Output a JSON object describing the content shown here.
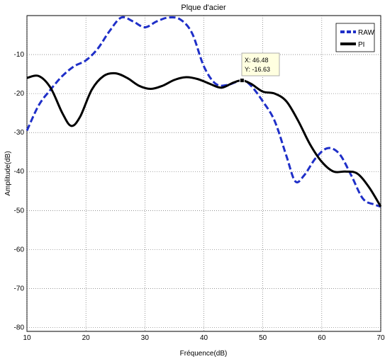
{
  "chart_data": {
    "type": "line",
    "title": "Plque d'acier",
    "xlabel": "Fréquence(dB)",
    "ylabel": "Amplitude(dB)",
    "xlim": [
      10,
      70
    ],
    "ylim": [
      -81,
      0
    ],
    "xticks": [
      "10",
      "20",
      "30",
      "40",
      "50",
      "60",
      "70"
    ],
    "yticks": [
      "-10",
      "-20",
      "-30",
      "-40",
      "-50",
      "-60",
      "-70",
      "-80"
    ],
    "grid": true,
    "legend_position": "top-right",
    "series": [
      {
        "name": "RAW",
        "color": "#1f2fc8",
        "dash": true,
        "x": [
          10,
          12,
          14,
          16,
          18,
          20,
          22,
          24,
          26,
          28,
          30,
          32,
          34,
          36,
          38,
          40,
          42,
          44,
          46.48,
          48,
          50,
          52,
          54,
          55.5,
          57,
          59,
          61,
          63,
          65,
          67,
          69,
          70
        ],
        "y": [
          -29.5,
          -23,
          -19,
          -15.5,
          -13,
          -11.5,
          -8.5,
          -4,
          -0.5,
          -1.5,
          -3,
          -1.5,
          -0.5,
          -1,
          -4.5,
          -13,
          -17.5,
          -17.8,
          -16.63,
          -18,
          -22,
          -27,
          -36,
          -42.5,
          -41,
          -36.5,
          -34,
          -35.5,
          -41,
          -47,
          -48.5,
          -49
        ]
      },
      {
        "name": "PI",
        "color": "#000000",
        "dash": false,
        "x": [
          10,
          12,
          14,
          16,
          17.5,
          19,
          21,
          23,
          25,
          27,
          29,
          31,
          33,
          35,
          37,
          39,
          41,
          43,
          45,
          46.48,
          48,
          50,
          52,
          54,
          56,
          58,
          60,
          62,
          64,
          66,
          68,
          70
        ],
        "y": [
          -16,
          -15.5,
          -18.5,
          -25,
          -28.3,
          -26,
          -19,
          -15.5,
          -14.8,
          -16,
          -18,
          -18.8,
          -18,
          -16.5,
          -15.8,
          -16.3,
          -17.5,
          -18.5,
          -17.2,
          -16.63,
          -17.5,
          -19.5,
          -20,
          -22,
          -27,
          -33,
          -37.5,
          -40,
          -40,
          -40.5,
          -44,
          -49
        ]
      }
    ],
    "annotation": {
      "x_text": "X: 46.48",
      "y_text": "Y: -16.63",
      "x": 46.48,
      "y": -16.63
    }
  }
}
